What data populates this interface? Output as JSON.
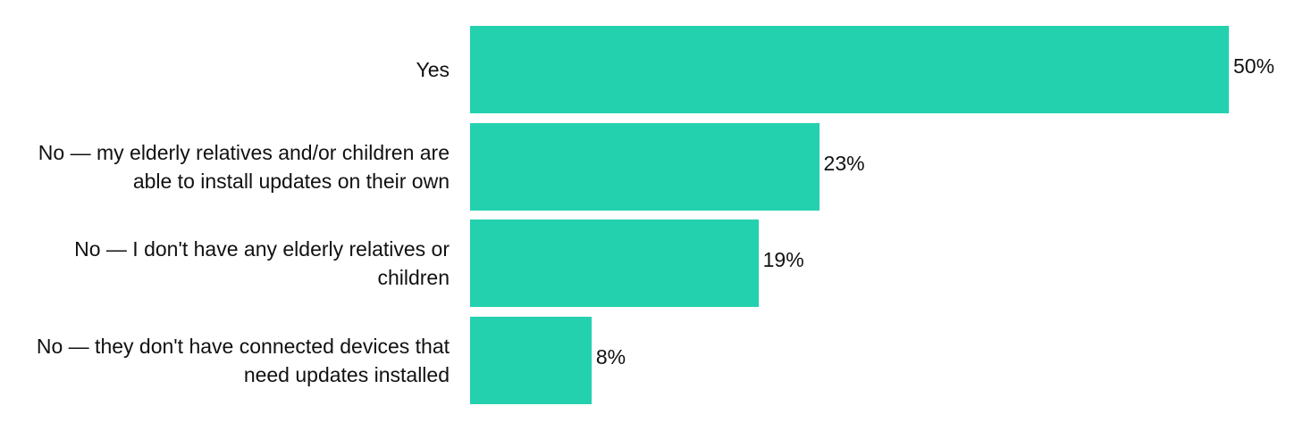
{
  "chart_data": {
    "type": "bar",
    "orientation": "horizontal",
    "categories": [
      "Yes",
      "No — my elderly relatives and/or children are able to install updates on their own",
      "No — I don't have any elderly relatives or children",
      "No — they don't have connected devices that need updates installed"
    ],
    "values": [
      50,
      23,
      19,
      8
    ],
    "value_labels": [
      "50%",
      "23%",
      "19%",
      "8%"
    ],
    "unit": "%",
    "xlim": [
      0,
      50
    ],
    "grid": false,
    "legend": "none",
    "bar_color": "#24d1ae"
  }
}
